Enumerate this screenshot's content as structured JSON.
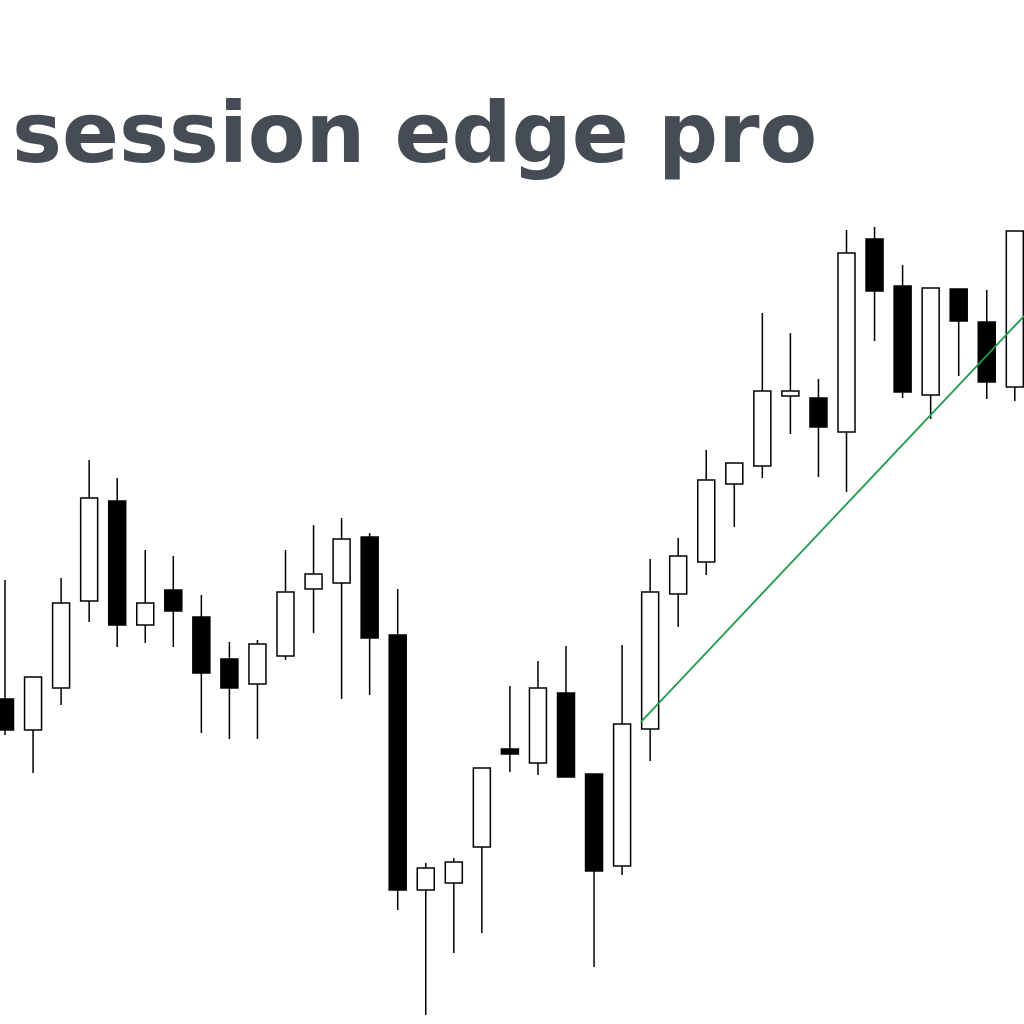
{
  "chart_data": {
    "type": "candlestick",
    "title": "session edge pro",
    "open": [
      325,
      294,
      336,
      423,
      523,
      399,
      434,
      407,
      365,
      340,
      368,
      435,
      441,
      487,
      389,
      134,
      141,
      177,
      275,
      261,
      331,
      250,
      158,
      295,
      430,
      462,
      540,
      558,
      628,
      626,
      592,
      785,
      738,
      629,
      735,
      702,
      637
    ],
    "high": [
      444,
      347,
      446,
      564,
      546,
      474,
      468,
      429,
      382,
      384,
      474,
      499,
      506,
      491,
      435,
      161,
      166,
      256,
      338,
      363,
      378,
      250,
      379,
      465,
      486,
      574,
      561,
      711,
      691,
      645,
      794,
      797,
      759,
      736,
      735,
      734,
      793
    ],
    "low": [
      289,
      251,
      319,
      402,
      377,
      381,
      377,
      291,
      285,
      285,
      364,
      391,
      325,
      329,
      114,
      9,
      71,
      91,
      252,
      249,
      247,
      57,
      149,
      263,
      397,
      449,
      497,
      546,
      590,
      547,
      532,
      683,
      626,
      605,
      648,
      625,
      623
    ],
    "close": [
      294,
      347,
      421,
      526,
      399,
      421,
      413,
      351,
      336,
      380,
      432,
      450,
      485,
      386,
      134,
      156,
      162,
      256,
      270,
      336,
      247,
      153,
      300,
      432,
      468,
      544,
      561,
      633,
      633,
      597,
      771,
      733,
      632,
      736,
      703,
      642,
      793
    ],
    "up_color": "#ffffff",
    "down_color": "#000000",
    "edge_color": "#000000",
    "ylim": [
      0,
      1024
    ],
    "trendline": {
      "color": "#1e9a4e",
      "x": [
        22.67,
        36.33
      ],
      "values": [
        302,
        708
      ]
    }
  }
}
